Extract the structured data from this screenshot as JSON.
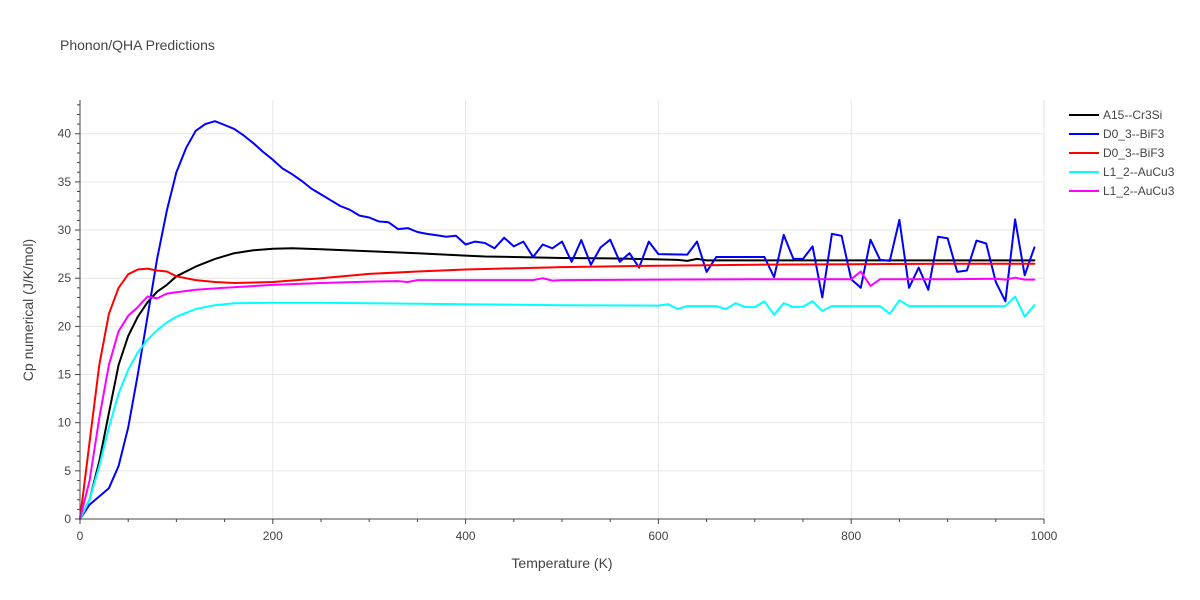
{
  "chart_data": {
    "type": "line",
    "title": "Phonon/QHA Predictions",
    "xlabel": "Temperature (K)",
    "ylabel": "Cp numerical (J/K/mol)",
    "xlim": [
      0,
      1000
    ],
    "ylim": [
      0,
      43.5
    ],
    "x_ticks": [
      0,
      200,
      400,
      600,
      800,
      1000
    ],
    "y_ticks": [
      0,
      5,
      10,
      15,
      20,
      25,
      30,
      35,
      40
    ],
    "grid": true,
    "legend_position": "right",
    "series": [
      {
        "name": "A15--Cr3Si",
        "color": "#000000",
        "points": [
          [
            0,
            0
          ],
          [
            10,
            2
          ],
          [
            20,
            6
          ],
          [
            30,
            11
          ],
          [
            40,
            16
          ],
          [
            50,
            19
          ],
          [
            60,
            21
          ],
          [
            70,
            22.5
          ],
          [
            80,
            23.6
          ],
          [
            90,
            24.3
          ],
          [
            100,
            25.2
          ],
          [
            120,
            26.2
          ],
          [
            140,
            27
          ],
          [
            160,
            27.6
          ],
          [
            180,
            27.9
          ],
          [
            200,
            28.05
          ],
          [
            220,
            28.1
          ],
          [
            250,
            28
          ],
          [
            300,
            27.8
          ],
          [
            350,
            27.6
          ],
          [
            400,
            27.35
          ],
          [
            420,
            27.25
          ],
          [
            450,
            27.2
          ],
          [
            500,
            27.1
          ],
          [
            550,
            27.05
          ],
          [
            600,
            26.95
          ],
          [
            620,
            26.9
          ],
          [
            630,
            26.8
          ],
          [
            640,
            27
          ],
          [
            650,
            26.85
          ],
          [
            700,
            26.85
          ],
          [
            800,
            26.85
          ],
          [
            900,
            26.85
          ],
          [
            990,
            26.85
          ]
        ]
      },
      {
        "name": "D0_3--BiF3",
        "color": "#0000ff",
        "points": [
          [
            0,
            0
          ],
          [
            10,
            1.5
          ],
          [
            30,
            3.2
          ],
          [
            40,
            5.5
          ],
          [
            50,
            9.5
          ],
          [
            60,
            15
          ],
          [
            70,
            21
          ],
          [
            80,
            27
          ],
          [
            90,
            32
          ],
          [
            100,
            36
          ],
          [
            110,
            38.5
          ],
          [
            120,
            40.3
          ],
          [
            130,
            41
          ],
          [
            140,
            41.3
          ],
          [
            150,
            40.9
          ],
          [
            160,
            40.5
          ],
          [
            170,
            39.8
          ],
          [
            180,
            39
          ],
          [
            190,
            38.1
          ],
          [
            200,
            37.3
          ],
          [
            210,
            36.4
          ],
          [
            220,
            35.8
          ],
          [
            230,
            35.1
          ],
          [
            240,
            34.3
          ],
          [
            250,
            33.7
          ],
          [
            260,
            33.1
          ],
          [
            270,
            32.5
          ],
          [
            280,
            32.1
          ],
          [
            290,
            31.5
          ],
          [
            300,
            31.3
          ],
          [
            310,
            30.9
          ],
          [
            320,
            30.8
          ],
          [
            330,
            30.1
          ],
          [
            340,
            30.2
          ],
          [
            350,
            29.8
          ],
          [
            360,
            29.6
          ],
          [
            370,
            29.45
          ],
          [
            380,
            29.3
          ],
          [
            390,
            29.4
          ],
          [
            400,
            28.5
          ],
          [
            410,
            28.8
          ],
          [
            420,
            28.65
          ],
          [
            430,
            28.1
          ],
          [
            440,
            29.2
          ],
          [
            450,
            28.3
          ],
          [
            460,
            28.8
          ],
          [
            470,
            27.2
          ],
          [
            480,
            28.5
          ],
          [
            490,
            28.1
          ],
          [
            500,
            28.8
          ],
          [
            510,
            26.7
          ],
          [
            520,
            28.95
          ],
          [
            530,
            26.4
          ],
          [
            540,
            28.2
          ],
          [
            550,
            29
          ],
          [
            560,
            26.7
          ],
          [
            570,
            27.6
          ],
          [
            580,
            26.1
          ],
          [
            590,
            28.8
          ],
          [
            600,
            27.5
          ],
          [
            630,
            27.45
          ],
          [
            640,
            28.8
          ],
          [
            650,
            25.65
          ],
          [
            660,
            27.2
          ],
          [
            710,
            27.2
          ],
          [
            720,
            25.1
          ],
          [
            730,
            29.5
          ],
          [
            740,
            27
          ],
          [
            750,
            27
          ],
          [
            760,
            28.3
          ],
          [
            770,
            23
          ],
          [
            780,
            29.6
          ],
          [
            790,
            29.4
          ],
          [
            800,
            24.9
          ],
          [
            810,
            24
          ],
          [
            820,
            29
          ],
          [
            830,
            26.9
          ],
          [
            840,
            26.8
          ],
          [
            850,
            31.05
          ],
          [
            860,
            24
          ],
          [
            870,
            26.1
          ],
          [
            880,
            23.8
          ],
          [
            890,
            29.3
          ],
          [
            900,
            29.15
          ],
          [
            910,
            25.65
          ],
          [
            920,
            25.8
          ],
          [
            930,
            28.9
          ],
          [
            940,
            28.6
          ],
          [
            950,
            24.6
          ],
          [
            960,
            22.6
          ],
          [
            970,
            31.1
          ],
          [
            980,
            25.3
          ],
          [
            990,
            28.2
          ]
        ]
      },
      {
        "name": "D0_3--BiF3",
        "color": "#ff0000",
        "points": [
          [
            0,
            0
          ],
          [
            10,
            8
          ],
          [
            20,
            16
          ],
          [
            30,
            21.3
          ],
          [
            40,
            24
          ],
          [
            50,
            25.4
          ],
          [
            60,
            25.9
          ],
          [
            70,
            26
          ],
          [
            80,
            25.8
          ],
          [
            90,
            25.7
          ],
          [
            100,
            25.2
          ],
          [
            120,
            24.8
          ],
          [
            140,
            24.6
          ],
          [
            160,
            24.5
          ],
          [
            200,
            24.6
          ],
          [
            250,
            25
          ],
          [
            300,
            25.45
          ],
          [
            350,
            25.7
          ],
          [
            400,
            25.9
          ],
          [
            500,
            26.15
          ],
          [
            600,
            26.3
          ],
          [
            700,
            26.4
          ],
          [
            800,
            26.45
          ],
          [
            900,
            26.5
          ],
          [
            990,
            26.5
          ]
        ]
      },
      {
        "name": "L1_2--AuCu3",
        "color": "#00ffff",
        "points": [
          [
            0,
            0
          ],
          [
            10,
            2
          ],
          [
            20,
            5.5
          ],
          [
            30,
            9.5
          ],
          [
            40,
            13
          ],
          [
            50,
            15.5
          ],
          [
            60,
            17.3
          ],
          [
            70,
            18.6
          ],
          [
            80,
            19.6
          ],
          [
            90,
            20.4
          ],
          [
            100,
            21
          ],
          [
            120,
            21.8
          ],
          [
            140,
            22.2
          ],
          [
            160,
            22.4
          ],
          [
            200,
            22.45
          ],
          [
            250,
            22.45
          ],
          [
            300,
            22.4
          ],
          [
            400,
            22.3
          ],
          [
            500,
            22.2
          ],
          [
            600,
            22.15
          ],
          [
            610,
            22.3
          ],
          [
            620,
            21.8
          ],
          [
            630,
            22.1
          ],
          [
            660,
            22.1
          ],
          [
            670,
            21.8
          ],
          [
            680,
            22.4
          ],
          [
            690,
            22
          ],
          [
            700,
            22
          ],
          [
            710,
            22.6
          ],
          [
            720,
            21.2
          ],
          [
            730,
            22.4
          ],
          [
            740,
            22
          ],
          [
            750,
            22.05
          ],
          [
            760,
            22.6
          ],
          [
            770,
            21.6
          ],
          [
            780,
            22.1
          ],
          [
            830,
            22.1
          ],
          [
            840,
            21.3
          ],
          [
            850,
            22.7
          ],
          [
            860,
            22.1
          ],
          [
            950,
            22.1
          ],
          [
            960,
            22.1
          ],
          [
            970,
            23.1
          ],
          [
            980,
            21
          ],
          [
            990,
            22.2
          ]
        ]
      },
      {
        "name": "L1_2--AuCu3",
        "color": "#ff00ff",
        "points": [
          [
            0,
            0
          ],
          [
            10,
            4
          ],
          [
            20,
            10.5
          ],
          [
            30,
            16
          ],
          [
            40,
            19.5
          ],
          [
            50,
            21.1
          ],
          [
            60,
            22
          ],
          [
            70,
            23.1
          ],
          [
            80,
            22.9
          ],
          [
            90,
            23.4
          ],
          [
            100,
            23.55
          ],
          [
            120,
            23.8
          ],
          [
            150,
            24
          ],
          [
            200,
            24.3
          ],
          [
            250,
            24.5
          ],
          [
            300,
            24.65
          ],
          [
            330,
            24.7
          ],
          [
            340,
            24.6
          ],
          [
            350,
            24.8
          ],
          [
            400,
            24.8
          ],
          [
            470,
            24.8
          ],
          [
            480,
            25
          ],
          [
            490,
            24.75
          ],
          [
            500,
            24.8
          ],
          [
            600,
            24.85
          ],
          [
            700,
            24.9
          ],
          [
            800,
            24.9
          ],
          [
            810,
            25.7
          ],
          [
            820,
            24.2
          ],
          [
            830,
            24.9
          ],
          [
            900,
            24.9
          ],
          [
            950,
            24.95
          ],
          [
            960,
            24.85
          ],
          [
            970,
            25.05
          ],
          [
            980,
            24.85
          ],
          [
            990,
            24.85
          ]
        ]
      }
    ]
  }
}
